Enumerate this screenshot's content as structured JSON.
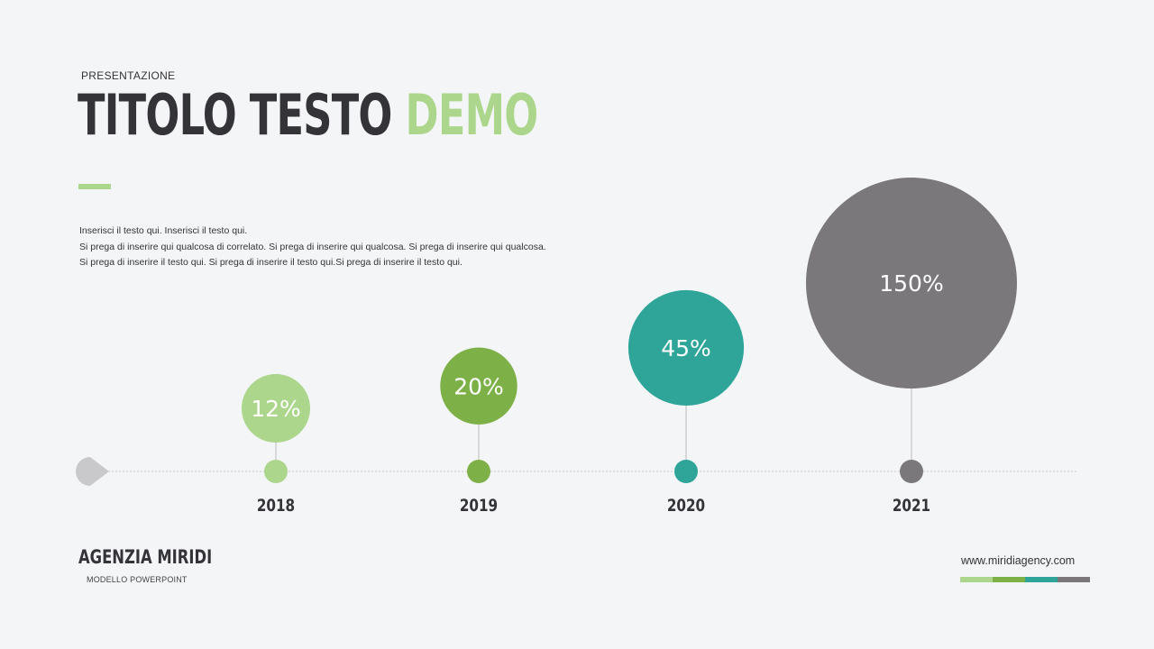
{
  "header": {
    "label": "PRESENTAZIONE",
    "title_part1": "TITOLO TESTO",
    "title_part2": "DEMO"
  },
  "body": {
    "line1": "Inserisci il testo qui. Inserisci il testo qui.",
    "line2": "Si prega di inserire qui qualcosa di correlato. Si prega di inserire qui qualcosa. Si prega di inserire qui qualcosa.",
    "line3": "Si prega di inserire il testo qui. Si prega di inserire il testo qui.Si prega di inserire il testo qui."
  },
  "chart_data": {
    "type": "bubble-timeline",
    "categories": [
      "2018",
      "2019",
      "2020",
      "2021"
    ],
    "values": [
      12,
      20,
      45,
      150
    ],
    "labels": [
      "12%",
      "20%",
      "45%",
      "150%"
    ],
    "colors": [
      "#abd68b",
      "#7db147",
      "#2fa59a",
      "#7a787b"
    ],
    "axis_color": "#c8c8ca"
  },
  "footer": {
    "agency": "AGENZIA MIRIDI",
    "subtitle": "MODELLO POWERPOINT",
    "url": "www.miridiagency.com",
    "strip_colors": [
      "#abd68b",
      "#7db147",
      "#2fa59a",
      "#7a787b"
    ]
  }
}
